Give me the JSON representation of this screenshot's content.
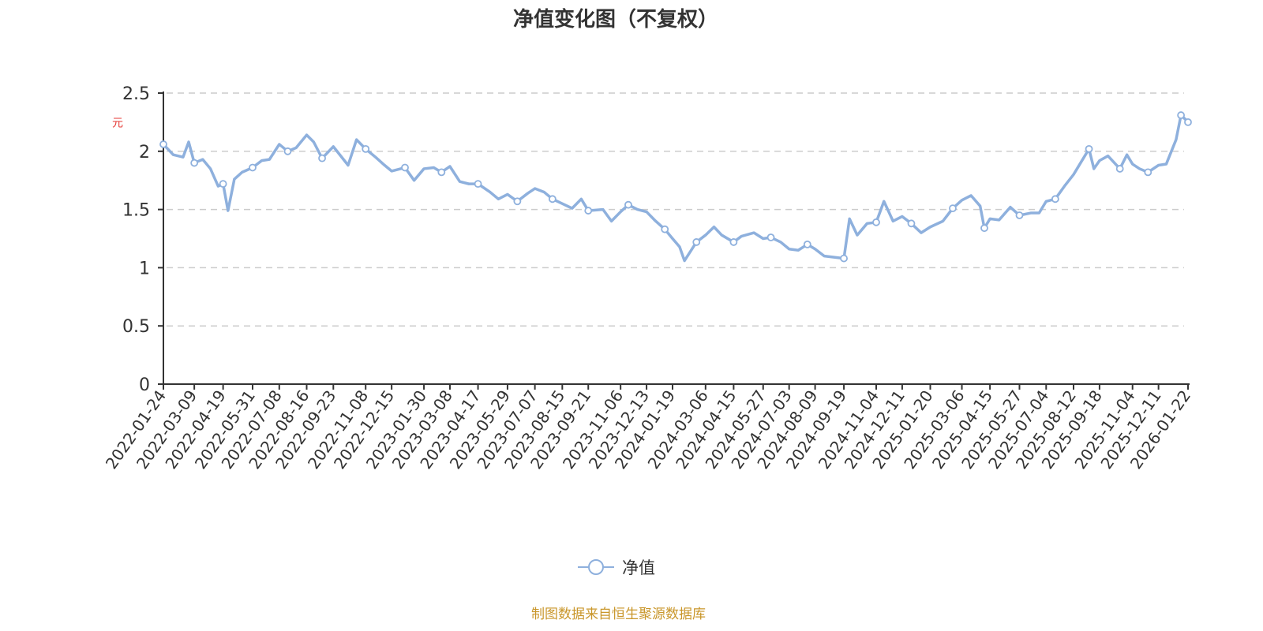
{
  "title": "净值变化图（不复权）",
  "y_unit": "元",
  "legend": {
    "label": "净值",
    "color": "#8eb0dd"
  },
  "source": "制图数据来自恒生聚源数据库",
  "chart_data": {
    "type": "line",
    "title": "净值变化图（不复权）",
    "xlabel": "",
    "ylabel": "元",
    "ylim": [
      0,
      2.5
    ],
    "yticks": [
      0,
      0.5,
      1,
      1.5,
      2,
      2.5
    ],
    "grid": true,
    "legend_position": "bottom",
    "x_tick_labels": [
      "2022-01-24",
      "2022-03-09",
      "2022-04-19",
      "2022-05-31",
      "2022-07-08",
      "2022-08-16",
      "2022-09-23",
      "2022-11-08",
      "2022-12-15",
      "2023-01-30",
      "2023-03-08",
      "2023-04-17",
      "2023-05-29",
      "2023-07-07",
      "2023-08-15",
      "2023-09-21",
      "2023-11-06",
      "2023-12-13",
      "2024-01-19",
      "2024-03-06",
      "2024-04-15",
      "2024-05-27",
      "2024-07-03",
      "2024-08-09",
      "2024-09-19",
      "2024-11-04",
      "2024-12-11",
      "2025-01-20",
      "2025-03-06",
      "2025-04-15",
      "2025-05-27",
      "2025-07-04",
      "2025-08-12",
      "2025-09-18",
      "2025-11-04",
      "2025-12-11",
      "2026-01-22"
    ],
    "series": [
      {
        "name": "净值",
        "color": "#8eb0dd",
        "x": [
          "2022-01-24",
          "2022-02-07",
          "2022-02-21",
          "2022-03-01",
          "2022-03-09",
          "2022-03-21",
          "2022-04-01",
          "2022-04-12",
          "2022-04-19",
          "2022-04-26",
          "2022-05-05",
          "2022-05-16",
          "2022-05-31",
          "2022-06-13",
          "2022-06-24",
          "2022-07-08",
          "2022-07-20",
          "2022-08-01",
          "2022-08-16",
          "2022-08-26",
          "2022-09-07",
          "2022-09-23",
          "2022-10-14",
          "2022-10-26",
          "2022-11-08",
          "2022-11-22",
          "2022-12-05",
          "2022-12-15",
          "2023-01-03",
          "2023-01-16",
          "2023-01-30",
          "2023-02-13",
          "2023-02-24",
          "2023-03-08",
          "2023-03-22",
          "2023-04-04",
          "2023-04-17",
          "2023-05-04",
          "2023-05-16",
          "2023-05-29",
          "2023-06-12",
          "2023-06-27",
          "2023-07-07",
          "2023-07-20",
          "2023-08-01",
          "2023-08-15",
          "2023-08-29",
          "2023-09-11",
          "2023-09-21",
          "2023-10-12",
          "2023-10-24",
          "2023-11-06",
          "2023-11-17",
          "2023-11-30",
          "2023-12-13",
          "2023-12-26",
          "2024-01-08",
          "2024-01-19",
          "2024-01-29",
          "2024-02-05",
          "2024-02-22",
          "2024-03-06",
          "2024-03-18",
          "2024-03-29",
          "2024-04-15",
          "2024-04-26",
          "2024-05-14",
          "2024-05-27",
          "2024-06-07",
          "2024-06-21",
          "2024-07-03",
          "2024-07-16",
          "2024-07-29",
          "2024-08-09",
          "2024-08-22",
          "2024-09-05",
          "2024-09-19",
          "2024-09-27",
          "2024-10-08",
          "2024-10-22",
          "2024-11-04",
          "2024-11-15",
          "2024-11-28",
          "2024-12-11",
          "2024-12-24",
          "2025-01-07",
          "2025-01-20",
          "2025-02-07",
          "2025-02-21",
          "2025-03-06",
          "2025-03-19",
          "2025-04-01",
          "2025-04-07",
          "2025-04-15",
          "2025-04-28",
          "2025-05-14",
          "2025-05-27",
          "2025-06-12",
          "2025-06-24",
          "2025-07-04",
          "2025-07-17",
          "2025-07-30",
          "2025-08-12",
          "2025-08-22",
          "2025-09-03",
          "2025-09-10",
          "2025-09-18",
          "2025-09-30",
          "2025-10-17",
          "2025-10-27",
          "2025-11-04",
          "2025-11-14",
          "2025-11-26",
          "2025-12-11",
          "2025-12-22",
          "2026-01-05",
          "2026-01-12",
          "2026-01-19",
          "2026-01-22"
        ],
        "values": [
          2.06,
          1.97,
          1.95,
          2.08,
          1.9,
          1.93,
          1.85,
          1.7,
          1.72,
          1.49,
          1.76,
          1.82,
          1.86,
          1.92,
          1.93,
          2.06,
          2.0,
          2.03,
          2.14,
          2.08,
          1.94,
          2.04,
          1.88,
          2.1,
          2.02,
          1.95,
          1.88,
          1.83,
          1.86,
          1.75,
          1.85,
          1.86,
          1.82,
          1.87,
          1.74,
          1.72,
          1.72,
          1.65,
          1.59,
          1.63,
          1.57,
          1.64,
          1.68,
          1.65,
          1.59,
          1.55,
          1.51,
          1.59,
          1.49,
          1.5,
          1.4,
          1.48,
          1.54,
          1.5,
          1.48,
          1.4,
          1.33,
          1.25,
          1.18,
          1.06,
          1.22,
          1.28,
          1.35,
          1.28,
          1.22,
          1.27,
          1.3,
          1.25,
          1.26,
          1.22,
          1.16,
          1.15,
          1.2,
          1.16,
          1.1,
          1.09,
          1.08,
          1.42,
          1.28,
          1.38,
          1.39,
          1.57,
          1.4,
          1.44,
          1.38,
          1.3,
          1.35,
          1.4,
          1.51,
          1.58,
          1.62,
          1.53,
          1.34,
          1.42,
          1.41,
          1.52,
          1.45,
          1.47,
          1.47,
          1.57,
          1.59,
          1.7,
          1.8,
          1.9,
          2.02,
          1.85,
          1.92,
          1.96,
          1.85,
          1.97,
          1.89,
          1.85,
          1.82,
          1.88,
          1.89,
          2.1,
          2.31,
          2.27,
          2.25
        ]
      }
    ]
  }
}
